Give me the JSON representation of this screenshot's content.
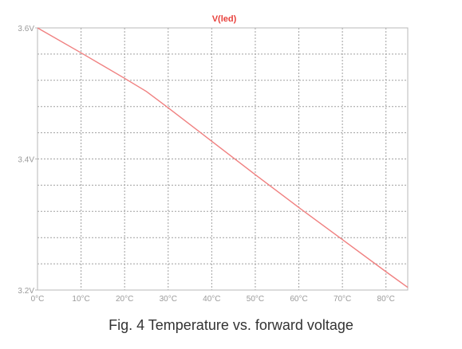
{
  "chart_data": {
    "type": "line",
    "title": "V(led)",
    "xlabel": "",
    "ylabel": "",
    "x_ticks": [
      "0°C",
      "10°C",
      "20°C",
      "30°C",
      "40°C",
      "50°C",
      "60°C",
      "70°C",
      "80°C"
    ],
    "y_ticks": [
      "3.6V",
      "3.4V",
      "3.2V"
    ],
    "xlim": [
      0,
      85
    ],
    "ylim": [
      3.2,
      3.6
    ],
    "grid": true,
    "series": [
      {
        "x": [
          0,
          10,
          20,
          25,
          30,
          40,
          50,
          60,
          70,
          80,
          85
        ],
        "y": [
          3.6,
          3.562,
          3.523,
          3.503,
          3.478,
          3.427,
          3.376,
          3.326,
          3.277,
          3.228,
          3.204
        ]
      }
    ],
    "colors": {
      "line": "#f08080",
      "title": "#e8413c",
      "grid": "#a0a0a0",
      "axis": "#b8b8b8",
      "ticks": "#9a9a9a"
    }
  },
  "caption": "Fig. 4 Temperature vs. forward voltage"
}
